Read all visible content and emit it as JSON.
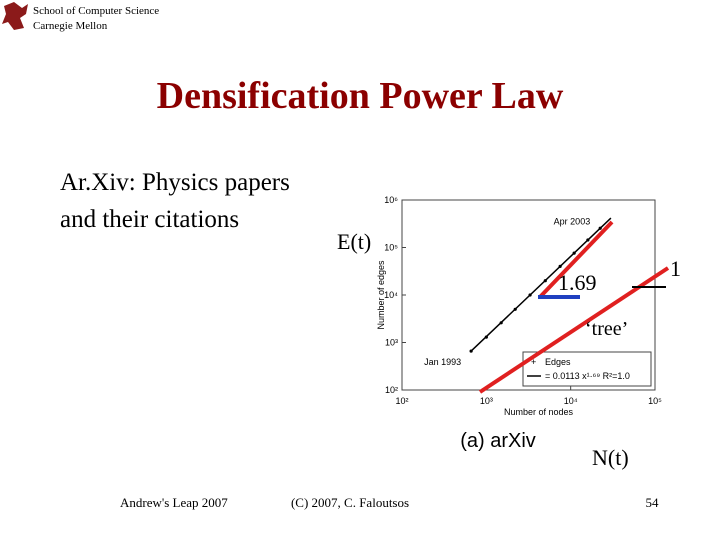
{
  "header": {
    "school": "School of Computer Science",
    "university": "Carnegie Mellon"
  },
  "title": "Densification Power Law",
  "body": [
    "Ar.Xiv: Physics papers",
    "and their citations"
  ],
  "annotations": {
    "y_name": "E(t)",
    "slope": "1.69",
    "tree_slope": "1",
    "tree": "‘tree’",
    "x_name": "N(t)"
  },
  "footer": {
    "left": "Andrew's Leap 2007",
    "center": "(C) 2007, C. Faloutsos",
    "page": "54"
  },
  "chart_data": {
    "type": "scatter",
    "caption": "(a)  arXiv",
    "x_label": "Number of nodes",
    "y_label": "Number of edges",
    "log_x": true,
    "log_y": true,
    "xlim": [
      100,
      100000
    ],
    "ylim": [
      100,
      1000000
    ],
    "xticks": [
      {
        "value": 100,
        "label": "10²"
      },
      {
        "value": 1000,
        "label": "10³"
      },
      {
        "value": 10000,
        "label": "10⁴"
      },
      {
        "value": 100000,
        "label": "10⁵"
      }
    ],
    "yticks": [
      {
        "value": 100,
        "label": "10²"
      },
      {
        "value": 1000,
        "label": "10³"
      },
      {
        "value": 10000,
        "label": "10⁴"
      },
      {
        "value": 100000,
        "label": "10⁵"
      },
      {
        "value": 1000000,
        "label": "10⁶"
      }
    ],
    "point_labels": [
      {
        "text": "Jan 1993",
        "x": 660,
        "y": 660
      },
      {
        "text": "Apr 2003",
        "x": 22400,
        "y": 254000
      }
    ],
    "legend": "lower right",
    "series": [
      {
        "name": "Edges",
        "color": "#000000",
        "style": "markers",
        "x": [
          660,
          1000,
          1500,
          2200,
          3300,
          5000,
          7500,
          11000,
          16000,
          22400
        ],
        "values": [
          660,
          1300,
          2600,
          5000,
          10000,
          20000,
          40000,
          76000,
          144000,
          254000
        ]
      },
      {
        "name": "= 0.0113 x¹·⁶⁹ R²=1.0",
        "color": "#000000",
        "style": "line",
        "x": [
          660,
          30000
        ],
        "values": [
          660,
          416000
        ]
      }
    ]
  }
}
